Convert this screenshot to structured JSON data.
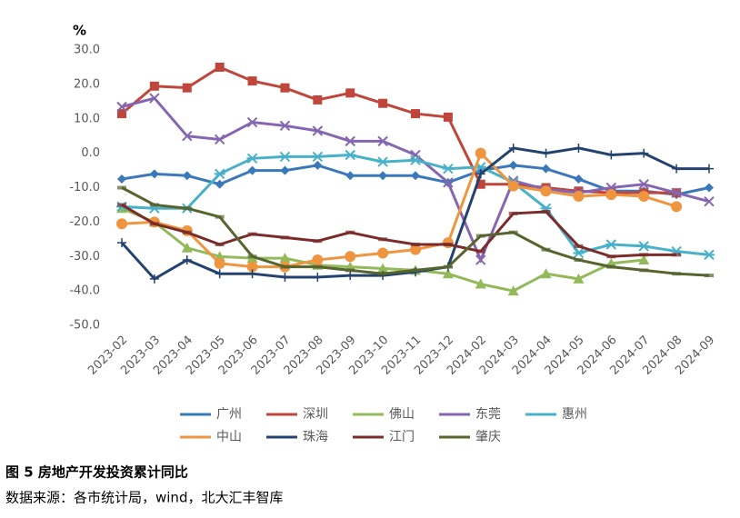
{
  "chart_data": {
    "type": "line",
    "y_label": "%",
    "caption": "图 5  房地产开发投资累计同比",
    "source": "数据来源：各市统计局，wind，北大汇丰智库",
    "categories": [
      "2023-02",
      "2023-03",
      "2023-04",
      "2023-05",
      "2023-06",
      "2023-07",
      "2023-08",
      "2023-09",
      "2023-10",
      "2023-11",
      "2023-12",
      "2024-02",
      "2024-03",
      "2024-04",
      "2024-05",
      "2024-06",
      "2024-07",
      "2024-08",
      "2024-09"
    ],
    "ylim": [
      -50,
      30
    ],
    "yticks": [
      {
        "value": -50,
        "label": "-50.0"
      },
      {
        "value": -40,
        "label": "-40.0"
      },
      {
        "value": -30,
        "label": "-30.0"
      },
      {
        "value": -20,
        "label": "-20.0"
      },
      {
        "value": -10,
        "label": "-10.0"
      },
      {
        "value": 0,
        "label": "0.0"
      },
      {
        "value": 10,
        "label": "10.0"
      },
      {
        "value": 20,
        "label": "20.0"
      },
      {
        "value": 30,
        "label": "30.0"
      }
    ],
    "grid": false,
    "series": [
      {
        "name": "广州",
        "color": "#3b78b9",
        "marker": "diamond",
        "values": [
          -7.5,
          -6,
          -6.5,
          -9,
          -5,
          -5,
          -3.5,
          -6.5,
          -6.5,
          -6.5,
          -8.5,
          -5,
          -3.5,
          -4.5,
          -7.5,
          -11,
          -11,
          -12,
          -10
        ]
      },
      {
        "name": "深圳",
        "color": "#c0453a",
        "marker": "square",
        "values": [
          11.5,
          19.5,
          19,
          25,
          21,
          19,
          15.5,
          17.5,
          14.5,
          11.5,
          10.5,
          -9,
          -9,
          -10,
          -11,
          -11.5,
          -11.5,
          -11.5,
          null
        ]
      },
      {
        "name": "佛山",
        "color": "#93b95a",
        "marker": "triangle",
        "values": [
          -16,
          -20,
          -27.5,
          -30,
          -30.5,
          -30.5,
          -32.5,
          -33,
          -33.5,
          -34,
          -35,
          -38,
          -40,
          -35,
          -36.5,
          -32,
          -31,
          null,
          null
        ]
      },
      {
        "name": "东莞",
        "color": "#8566b0",
        "marker": "x",
        "values": [
          13.5,
          16,
          5,
          4,
          9,
          8,
          6.5,
          3.5,
          3.5,
          -0.5,
          -8.5,
          -31,
          -8,
          -10.5,
          -11.5,
          -10,
          -9,
          -11.5,
          -14
        ]
      },
      {
        "name": "惠州",
        "color": "#48b1c9",
        "marker": "star",
        "values": [
          -15.5,
          -16,
          -16,
          -6,
          -1.5,
          -1,
          -1,
          -0.5,
          -2.5,
          -2,
          -4.5,
          -4,
          -8.5,
          -16,
          -29,
          -26.5,
          -27,
          -28.5,
          -29.5
        ]
      },
      {
        "name": "中山",
        "color": "#f0953f",
        "marker": "circle",
        "values": [
          -20.5,
          -20,
          -22.5,
          -32,
          -33,
          -33,
          -31,
          -30,
          -29,
          -28,
          -26,
          0,
          -9.5,
          -11,
          -12.5,
          -12,
          -12.5,
          -15.5,
          null
        ]
      },
      {
        "name": "珠海",
        "color": "#24426f",
        "marker": "plus",
        "values": [
          -26,
          -36.5,
          -31,
          -35,
          -35,
          -36,
          -36,
          -35.5,
          -35.5,
          -34.5,
          -33,
          -6,
          1.5,
          0,
          1.5,
          -0.5,
          0,
          -4.5,
          -4.5
        ]
      },
      {
        "name": "江门",
        "color": "#7a2c2a",
        "marker": "dash",
        "values": [
          -15,
          -20.5,
          -23,
          -26.5,
          -23.5,
          -24.5,
          -25.5,
          -23,
          -25,
          -26.5,
          -26.5,
          -28.5,
          -17.5,
          -17,
          -27,
          -30,
          -29.5,
          -29.5,
          null
        ]
      },
      {
        "name": "肇庆",
        "color": "#56642e",
        "marker": "dash",
        "values": [
          -10,
          -15,
          -16,
          -18.5,
          -30,
          -33,
          -33,
          -34,
          -35,
          -34,
          -33,
          -24,
          -23,
          -28,
          -31,
          -33,
          -34,
          -35,
          -35.5
        ]
      }
    ]
  }
}
